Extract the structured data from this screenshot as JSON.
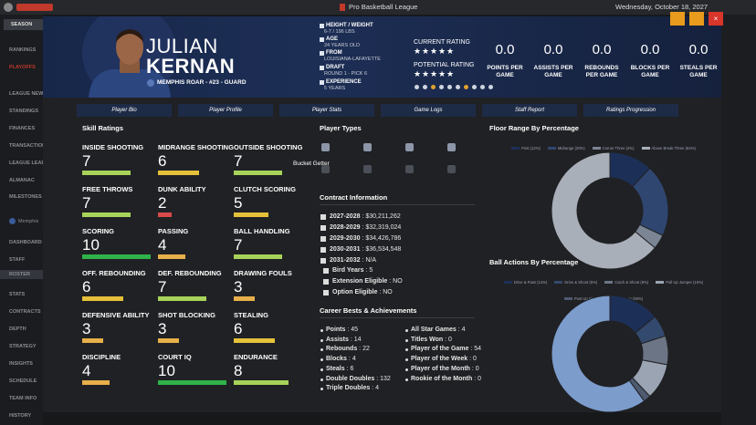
{
  "app": {
    "title": "Pro Basketball League",
    "date": "Wednesday, October 18, 2027"
  },
  "sidebar": {
    "section": "SEASON",
    "league_items": [
      "RANKINGS",
      "PLAYOFFS",
      "LEAGUE NEWS",
      "STANDINGS",
      "FINANCES",
      "TRANSACTIONS",
      "LEAGUE LEADERS",
      "ALMANAC",
      "MILESTONES"
    ],
    "team": "Memphis",
    "team_items": [
      "DASHBOARD",
      "STAFF",
      "ROSTER",
      "STATS",
      "CONTRACTS",
      "DEPTH",
      "STRATEGY",
      "INSIGHTS",
      "SCHEDULE",
      "TEAM INFO",
      "HISTORY"
    ]
  },
  "player": {
    "first_name": "JULIAN",
    "last_name": "KERNAN",
    "team_line": "MEMPHIS ROAR - #23 - GUARD",
    "info": [
      {
        "label": "HEIGHT / WEIGHT",
        "value": "6-7 / 196 LBS"
      },
      {
        "label": "AGE",
        "value": "24 YEARS OLD"
      },
      {
        "label": "FROM",
        "value": "LOUISIANA-LAFAYETTE"
      },
      {
        "label": "DRAFT",
        "value": "ROUND 1 - PICK 6"
      },
      {
        "label": "EXPERIENCE",
        "value": "5 YEARS"
      }
    ],
    "current_rating": {
      "label": "CURRENT RATING",
      "stars": 5
    },
    "potential_rating": {
      "label": "POTENTIAL RATING",
      "stars": 5
    },
    "stats": [
      {
        "value": "0.0",
        "label": "POINTS PER GAME"
      },
      {
        "value": "0.0",
        "label": "ASSISTS PER GAME"
      },
      {
        "value": "0.0",
        "label": "REBOUNDS PER GAME"
      },
      {
        "value": "0.0",
        "label": "BLOCKS PER GAME"
      },
      {
        "value": "0.0",
        "label": "STEALS PER GAME"
      }
    ]
  },
  "tabs": [
    "Player Bio",
    "Player Profile",
    "Player Stats",
    "Game Logs",
    "Staff Report",
    "Ratings Progression"
  ],
  "skills": {
    "title": "Skill Ratings",
    "max": 10,
    "items": [
      {
        "name": "INSIDE SHOOTING",
        "value": 7
      },
      {
        "name": "MIDRANGE SHOOTING",
        "value": 6
      },
      {
        "name": "OUTSIDE SHOOTING",
        "value": 7
      },
      {
        "name": "FREE THROWS",
        "value": 7
      },
      {
        "name": "DUNK ABILITY",
        "value": 2
      },
      {
        "name": "CLUTCH SCORING",
        "value": 5
      },
      {
        "name": "SCORING",
        "value": 10
      },
      {
        "name": "PASSING",
        "value": 4
      },
      {
        "name": "BALL HANDLING",
        "value": 7
      },
      {
        "name": "OFF. REBOUNDING",
        "value": 6
      },
      {
        "name": "DEF. REBOUNDING",
        "value": 7
      },
      {
        "name": "DRAWING FOULS",
        "value": 3
      },
      {
        "name": "DEFENSIVE ABILITY",
        "value": 3
      },
      {
        "name": "SHOT BLOCKING",
        "value": 3
      },
      {
        "name": "STEALING",
        "value": 6
      },
      {
        "name": "DISCIPLINE",
        "value": 4
      },
      {
        "name": "COURT IQ",
        "value": 10
      },
      {
        "name": "ENDURANCE",
        "value": 8
      }
    ]
  },
  "player_types": {
    "title": "Player Types",
    "active": "Bucket Getter"
  },
  "contract": {
    "title": "Contract Information",
    "years": [
      {
        "season": "2027-2028",
        "amount": "$30,211,262"
      },
      {
        "season": "2028-2029",
        "amount": "$32,319,024"
      },
      {
        "season": "2029-2030",
        "amount": "$34,426,786"
      },
      {
        "season": "2030-2031",
        "amount": "$36,534,548"
      },
      {
        "season": "2031-2032",
        "amount": "N/A"
      }
    ],
    "details": [
      {
        "label": "Bird Years",
        "value": "5"
      },
      {
        "label": "Extension Eligible",
        "value": "NO"
      },
      {
        "label": "Option Eligible",
        "value": "NO"
      }
    ]
  },
  "career": {
    "title": "Career Bests & Achievements",
    "left": [
      {
        "label": "Points",
        "value": "45"
      },
      {
        "label": "Assists",
        "value": "14"
      },
      {
        "label": "Rebounds",
        "value": "22"
      },
      {
        "label": "Blocks",
        "value": "4"
      },
      {
        "label": "Steals",
        "value": "6"
      },
      {
        "label": "Double Doubles",
        "value": "132"
      },
      {
        "label": "Triple Doubles",
        "value": "4"
      }
    ],
    "right": [
      {
        "label": "All Star Games",
        "value": "4"
      },
      {
        "label": "Titles Won",
        "value": "0"
      },
      {
        "label": "Player of the Game",
        "value": "54"
      },
      {
        "label": "Player of the Week",
        "value": "0"
      },
      {
        "label": "Player of the Month",
        "value": "0"
      },
      {
        "label": "Rookie of the Month",
        "value": "0"
      }
    ]
  },
  "chart_data": [
    {
      "type": "pie",
      "title": "Floor Range By Percentage",
      "categories": [
        "Post (12%)",
        "Midrange (20%)",
        "Corner Three (4%)",
        "Above Break Three (64%)"
      ],
      "values": [
        12,
        20,
        4,
        64
      ],
      "colors": [
        "#1c3057",
        "#2f4670",
        "#7c8594",
        "#a9afb9"
      ]
    },
    {
      "type": "pie",
      "title": "Ball Actions By Percentage",
      "categories": [
        "Drive & Pass (14%)",
        "Drive & Shoot (6%)",
        "Catch & Shoot (8%)",
        "Pull Up Jumper (10%)",
        "Post Up Shot (2%)",
        "Pass (60%)"
      ],
      "values": [
        14,
        6,
        8,
        10,
        2,
        60
      ],
      "colors": [
        "#1c3057",
        "#34496e",
        "#6b7585",
        "#9aa4b3",
        "#4d5a70",
        "#7c9ccc"
      ]
    }
  ]
}
